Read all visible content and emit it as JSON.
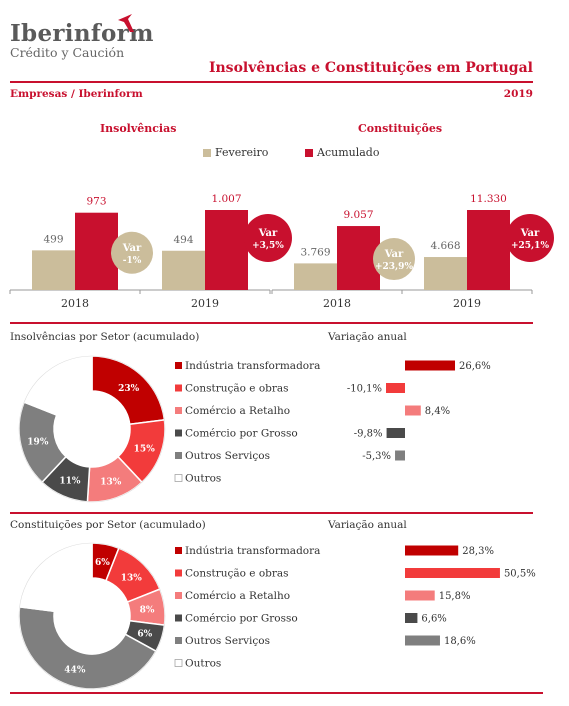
{
  "brand": {
    "name": "Iberinform",
    "tagline": "Crédito y Caución"
  },
  "header": {
    "title": "Insolvências e Constituições em Portugal",
    "source": "Empresas / Iberinform",
    "year": "2019"
  },
  "colors": {
    "red": "#c8102e",
    "beige": "#cbbd9b",
    "crimson": "#c00000",
    "bright_red": "#f23b3b",
    "pink": "#f47c7c",
    "dark_gray": "#4a4a4a",
    "gray": "#7f7f7f"
  },
  "legend": {
    "fevereiro": "Fevereiro",
    "acumulado": "Acumulado"
  },
  "chart_data": [
    {
      "type": "bar",
      "title": "Insolvências",
      "categories": [
        "2018",
        "2019"
      ],
      "series": [
        {
          "name": "Fevereiro",
          "values": [
            499,
            494
          ],
          "labels": [
            "499",
            "494"
          ]
        },
        {
          "name": "Acumulado",
          "values": [
            973,
            1007
          ],
          "labels": [
            "973",
            "1.007"
          ]
        }
      ],
      "var_labels": {
        "fevereiro": [
          "Var",
          "-1%"
        ],
        "acumulado": [
          "Var",
          "+3,5%"
        ]
      }
    },
    {
      "type": "bar",
      "title": "Constituições",
      "categories": [
        "2018",
        "2019"
      ],
      "series": [
        {
          "name": "Fevereiro",
          "values": [
            3769,
            4668
          ],
          "labels": [
            "3.769",
            "4.668"
          ]
        },
        {
          "name": "Acumulado",
          "values": [
            9057,
            11330
          ],
          "labels": [
            "9.057",
            "11.330"
          ]
        }
      ],
      "var_labels": {
        "fevereiro": [
          "Var",
          "+23,9%"
        ],
        "acumulado": [
          "Var",
          "+25,1%"
        ]
      }
    },
    {
      "type": "pie",
      "title": "Insolvências por Setor (acumulado)",
      "variation_title": "Variação anual",
      "sectors": [
        {
          "name": "Indústria transformadora",
          "share": 23,
          "share_label": "23%",
          "variation": 26.6,
          "variation_label": "26,6%",
          "color": "#c00000"
        },
        {
          "name": "Construção e obras",
          "share": 15,
          "share_label": "15%",
          "variation": -10.1,
          "variation_label": "-10,1%",
          "color": "#f23b3b"
        },
        {
          "name": "Comércio a Retalho",
          "share": 13,
          "share_label": "13%",
          "variation": 8.4,
          "variation_label": "8,4%",
          "color": "#f47c7c"
        },
        {
          "name": "Comércio por Grosso",
          "share": 11,
          "share_label": "11%",
          "variation": -9.8,
          "variation_label": "-9,8%",
          "color": "#4a4a4a"
        },
        {
          "name": "Outros Serviços",
          "share": 19,
          "share_label": "19%",
          "variation": -5.3,
          "variation_label": "-5,3%",
          "color": "#7f7f7f"
        },
        {
          "name": "Outros",
          "share": 19,
          "share_label": "",
          "variation": null,
          "variation_label": "",
          "color": "#ffffff"
        }
      ]
    },
    {
      "type": "pie",
      "title": "Constituições por Setor (acumulado)",
      "variation_title": "Variação anual",
      "sectors": [
        {
          "name": "Indústria transformadora",
          "share": 6,
          "share_label": "6%",
          "variation": 28.3,
          "variation_label": "28,3%",
          "color": "#c00000"
        },
        {
          "name": "Construção e obras",
          "share": 13,
          "share_label": "13%",
          "variation": 50.5,
          "variation_label": "50,5%",
          "color": "#f23b3b"
        },
        {
          "name": "Comércio a Retalho",
          "share": 8,
          "share_label": "8%",
          "variation": 15.8,
          "variation_label": "15,8%",
          "color": "#f47c7c"
        },
        {
          "name": "Comércio por Grosso",
          "share": 6,
          "share_label": "6%",
          "variation": 6.6,
          "variation_label": "6,6%",
          "color": "#4a4a4a"
        },
        {
          "name": "Outros Serviços",
          "share": 44,
          "share_label": "44%",
          "variation": 18.6,
          "variation_label": "18,6%",
          "color": "#7f7f7f"
        },
        {
          "name": "Outros",
          "share": 23,
          "share_label": "",
          "variation": null,
          "variation_label": "",
          "color": "#ffffff"
        }
      ]
    }
  ]
}
